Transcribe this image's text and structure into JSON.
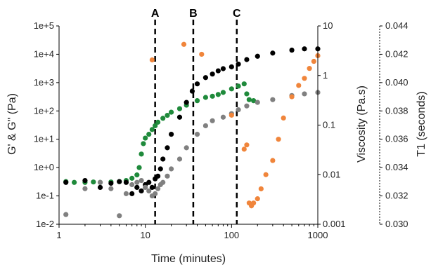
{
  "chart_data": {
    "type": "scatter",
    "xlabel": "Time (minutes)",
    "x_scale": "log",
    "xlim": [
      1,
      1000
    ],
    "x_ticks": [
      "1",
      "10",
      "100",
      "1000"
    ],
    "ylabel_left": "G' & G\" (Pa)",
    "y_left_scale": "log",
    "y_left_lim": [
      0.01,
      100000
    ],
    "y_left_ticks": [
      "1e-2",
      "1e-1",
      "1e+0",
      "1e+1",
      "1e+2",
      "1e+3",
      "1e+4",
      "1e+5"
    ],
    "ylabel_mid": "Viscosity (Pa.s)",
    "y_mid_scale": "log",
    "y_mid_lim": [
      0.001,
      10
    ],
    "y_mid_ticks": [
      "0.001",
      "0.01",
      "0.1",
      "1",
      "10"
    ],
    "ylabel_right": "T1 (seconds)",
    "y_right_lim": [
      0.03,
      0.044
    ],
    "y_right_ticks": [
      "0.030",
      "0.032",
      "0.034",
      "0.036",
      "0.038",
      "0.040",
      "0.042",
      "0.044"
    ],
    "markers": [
      {
        "label": "A",
        "x": 13
      },
      {
        "label": "B",
        "x": 36
      },
      {
        "label": "C",
        "x": 115
      }
    ],
    "grid": false,
    "series": [
      {
        "axis": "left",
        "color": "#1f8a3b",
        "points": [
          [
            1.2,
            0.32
          ],
          [
            1.5,
            0.3
          ],
          [
            2,
            0.3
          ],
          [
            2.5,
            0.31
          ],
          [
            3,
            0.3
          ],
          [
            4,
            0.31
          ],
          [
            5,
            0.32
          ],
          [
            6,
            0.35
          ],
          [
            7,
            0.42
          ],
          [
            8,
            0.55
          ],
          [
            8.5,
            1
          ],
          [
            9,
            3
          ],
          [
            9.5,
            7
          ],
          [
            10,
            11
          ],
          [
            11,
            15
          ],
          [
            12,
            22
          ],
          [
            13,
            30
          ],
          [
            14,
            40
          ],
          [
            16,
            55
          ],
          [
            18,
            70
          ],
          [
            20,
            90
          ],
          [
            25,
            120
          ],
          [
            30,
            160
          ],
          [
            40,
            230
          ],
          [
            50,
            300
          ],
          [
            60,
            330
          ],
          [
            70,
            380
          ],
          [
            80,
            450
          ],
          [
            100,
            600
          ],
          [
            120,
            750
          ],
          [
            140,
            900
          ],
          [
            150,
            400
          ],
          [
            160,
            250
          ],
          [
            180,
            230
          ]
        ]
      },
      {
        "axis": "left",
        "color": "#000000",
        "points": [
          [
            1.2,
            0.3
          ],
          [
            2,
            0.35
          ],
          [
            3,
            0.2
          ],
          [
            4,
            0.28
          ],
          [
            5,
            0.32
          ],
          [
            6,
            0.3
          ],
          [
            7,
            0.12
          ],
          [
            8,
            0.2
          ],
          [
            9,
            0.15
          ],
          [
            10,
            0.25
          ],
          [
            11,
            0.3
          ],
          [
            12,
            0.2
          ],
          [
            13,
            0.4
          ],
          [
            14,
            0.5
          ],
          [
            15,
            0.9
          ],
          [
            16,
            2
          ],
          [
            18,
            5
          ],
          [
            20,
            15
          ],
          [
            25,
            60
          ],
          [
            30,
            200
          ],
          [
            35,
            500
          ],
          [
            40,
            900
          ],
          [
            50,
            1500
          ],
          [
            60,
            2000
          ],
          [
            70,
            2600
          ],
          [
            80,
            3100
          ],
          [
            100,
            3600
          ],
          [
            120,
            4500
          ],
          [
            150,
            6500
          ],
          [
            200,
            8500
          ],
          [
            300,
            11000
          ],
          [
            500,
            14000
          ],
          [
            700,
            15500
          ],
          [
            1000,
            15500
          ]
        ]
      },
      {
        "axis": "left",
        "color": "#808080",
        "points": [
          [
            1.2,
            0.022
          ],
          [
            2,
            0.18
          ],
          [
            3,
            0.3
          ],
          [
            4,
            0.18
          ],
          [
            5,
            0.02
          ],
          [
            6,
            0.12
          ],
          [
            7,
            0.25
          ],
          [
            8,
            0.3
          ],
          [
            9,
            0.35
          ],
          [
            10,
            0.2
          ],
          [
            11,
            0.15
          ],
          [
            12,
            0.1
          ],
          [
            13,
            0.12
          ],
          [
            14,
            0.18
          ],
          [
            15,
            0.25
          ],
          [
            16,
            0.3
          ],
          [
            18,
            0.5
          ],
          [
            20,
            0.9
          ],
          [
            25,
            2
          ],
          [
            30,
            5
          ],
          [
            40,
            15
          ],
          [
            50,
            30
          ],
          [
            60,
            45
          ],
          [
            80,
            60
          ],
          [
            100,
            80
          ],
          [
            120,
            110
          ],
          [
            150,
            150
          ],
          [
            200,
            200
          ],
          [
            300,
            250
          ],
          [
            500,
            350
          ],
          [
            700,
            400
          ],
          [
            1000,
            450
          ]
        ]
      },
      {
        "axis": "right",
        "color": "#f0853b",
        "points": [
          [
            12,
            0.0416
          ],
          [
            28,
            0.0427
          ],
          [
            45,
            0.042
          ],
          [
            100,
            0.0377
          ],
          [
            140,
            0.0353
          ],
          [
            150,
            0.0356
          ],
          [
            160,
            0.0315
          ],
          [
            170,
            0.0313
          ],
          [
            180,
            0.0315
          ],
          [
            200,
            0.0318
          ],
          [
            220,
            0.0325
          ],
          [
            250,
            0.0335
          ],
          [
            300,
            0.0345
          ],
          [
            350,
            0.036
          ],
          [
            400,
            0.0375
          ],
          [
            500,
            0.039
          ],
          [
            600,
            0.0398
          ],
          [
            700,
            0.0403
          ],
          [
            800,
            0.041
          ],
          [
            900,
            0.0415
          ],
          [
            1000,
            0.0419
          ]
        ]
      }
    ]
  }
}
